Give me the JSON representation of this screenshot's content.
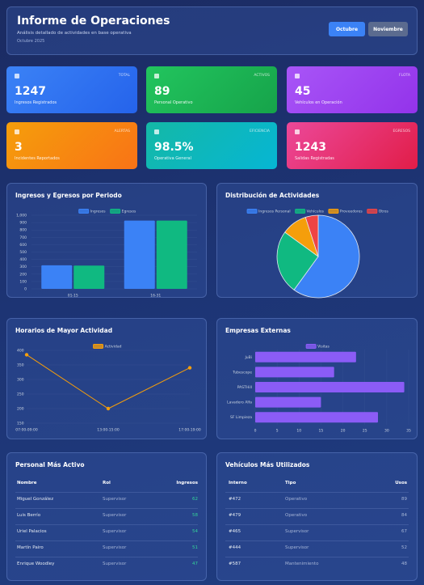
{
  "header": {
    "title": "Informe de Operaciones",
    "subtitle": "Análisis detallado de actividades en base operativa",
    "date": "Octubre 2025",
    "buttons": [
      "Octubre",
      "Noviembre"
    ]
  },
  "cards": [
    {
      "label": "TOTAL",
      "value": 1247,
      "caption": "Ingresos Registrados"
    },
    {
      "label": "ACTIVOS",
      "value": 89,
      "caption": "Personal Operativo"
    },
    {
      "label": "FLOTA",
      "value": 45,
      "caption": "Vehículos en Operación"
    },
    {
      "label": "ALERTAS",
      "value": 3,
      "caption": "Incidentes Reportados"
    },
    {
      "label": "EFICIENCIA",
      "value": "98.5%",
      "caption": "Operativa General"
    },
    {
      "label": "EGRESOS",
      "value": 1243,
      "caption": "Salidas Registradas"
    }
  ],
  "chart_data": [
    {
      "type": "bar",
      "title": "Ingresos y Egresos por Periodo",
      "categories": [
        "01-15",
        "16-31"
      ],
      "series": [
        {
          "name": "Ingresos",
          "color": "#3b82f6",
          "values": [
            320,
            927
          ]
        },
        {
          "name": "Egresos",
          "color": "#10b981",
          "values": [
            316,
            927
          ]
        }
      ],
      "ylim": [
        0,
        1000
      ],
      "yticks": [
        0,
        100,
        200,
        300,
        400,
        500,
        600,
        700,
        800,
        900,
        {
          "value": 1000,
          "label": "1,000"
        }
      ],
      "grid": true
    },
    {
      "type": "pie",
      "title": "Distribución de Actividades",
      "categories": [
        "Ingresos Personal",
        "Vehículos",
        "Proveedores",
        "Otros"
      ],
      "values": [
        60,
        25,
        10,
        5
      ],
      "colors": [
        "#3b82f6",
        "#10b981",
        "#f59e0b",
        "#ef4444"
      ]
    },
    {
      "type": "line",
      "title": "Horarios de Mayor Actividad",
      "categories": [
        "07:00-09:00",
        "13:00-15:00",
        "17:00-19:00"
      ],
      "series": [
        {
          "name": "Actividad",
          "color": "#f59e0b",
          "values": [
            385,
            200,
            340
          ]
        }
      ],
      "ylim": [
        150,
        400
      ],
      "yticks": [
        150,
        200,
        250,
        300,
        350,
        400
      ],
      "grid": true
    },
    {
      "type": "hbar",
      "title": "Empresas Externas",
      "categories": [
        "JuBi",
        "Tubescope",
        "PASTHill",
        "Lavadero Alfa",
        "SF Limpieza"
      ],
      "series": [
        {
          "name": "Visitas",
          "color": "#8b5cf6",
          "values": [
            23,
            18,
            34,
            15,
            28
          ]
        }
      ],
      "xlim": [
        0,
        35
      ],
      "xticks": [
        0,
        5,
        10,
        15,
        20,
        25,
        30,
        35
      ],
      "grid": true
    }
  ],
  "tables": [
    {
      "title": "Personal Más Activo",
      "columns": [
        "Nombre",
        "Rol",
        "Ingresos"
      ],
      "rows": [
        [
          "Miguel González",
          "Supervisor",
          62
        ],
        [
          "Luis Berrío",
          "Supervisor",
          58
        ],
        [
          "Uriel Palacios",
          "Supervisor",
          54
        ],
        [
          "Martín Pairo",
          "Supervisor",
          51
        ],
        [
          "Enrique Woodley",
          "Supervisor",
          47
        ]
      ]
    },
    {
      "title": "Vehículos Más Utilizados",
      "columns": [
        "Interno",
        "Tipo",
        "Usos"
      ],
      "rows": [
        [
          "#472",
          "Operativo",
          89
        ],
        [
          "#479",
          "Operativo",
          84
        ],
        [
          "#465",
          "Supervisor",
          67
        ],
        [
          "#444",
          "Supervisor",
          52
        ],
        [
          "#587",
          "Mantenimiento",
          48
        ]
      ]
    }
  ]
}
